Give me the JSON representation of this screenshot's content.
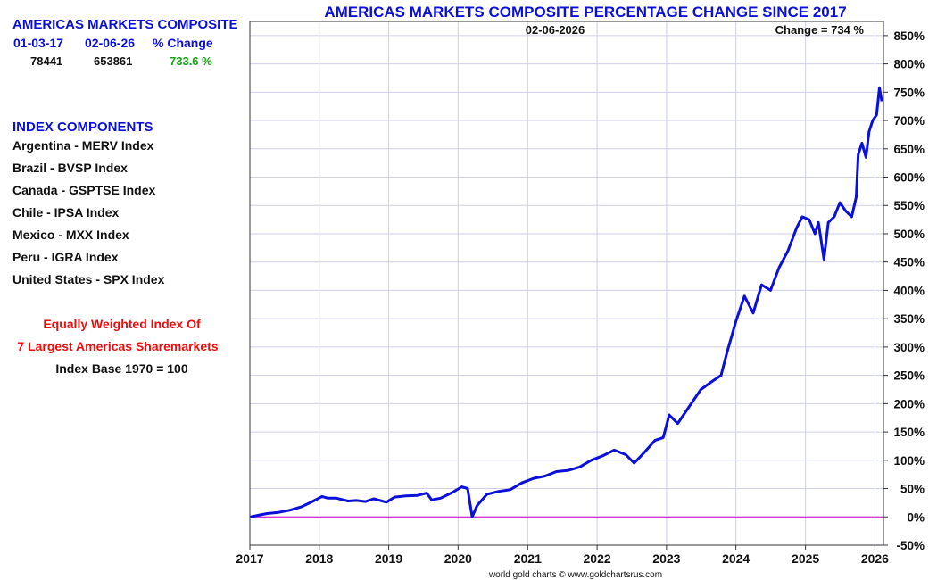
{
  "summary": {
    "title": "AMERICAS MARKETS COMPOSITE",
    "col_headers": [
      "01-03-17",
      "02-06-26",
      "% Change"
    ],
    "start_value": "78441",
    "end_value": "653861",
    "pct_change": "733.6 %"
  },
  "components": {
    "heading": "INDEX COMPONENTS",
    "items": [
      "Argentina - MERV Index",
      "Brazil - BVSP Index",
      "Canada - GSPTSE Index",
      "Chile - IPSA Index",
      "Mexico - MXX Index",
      "Peru - IGRA Index",
      "United States - SPX Index"
    ]
  },
  "notes": {
    "line1": "Equally Weighted Index Of",
    "line2": "7 Largest Americas Sharemarkets",
    "line3": "Index Base 1970 = 100"
  },
  "footer": "world gold charts © www.goldchartsrus.com",
  "colors": {
    "series": "#0b10d8",
    "zero_line": "#cc00cc",
    "grid": "#cfcfe8",
    "title": "#0b10d8"
  },
  "chart_data": {
    "type": "line",
    "title": "AMERICAS MARKETS COMPOSITE PERCENTAGE CHANGE SINCE 2017",
    "date_label": "02-06-2026",
    "change_label": "Change = 734 %",
    "ylim": [
      -50,
      875
    ],
    "y_ticks": [
      -50,
      0,
      50,
      100,
      150,
      200,
      250,
      300,
      350,
      400,
      450,
      500,
      550,
      600,
      650,
      700,
      750,
      800,
      850
    ],
    "y_tick_labels": [
      "-50%",
      "0%",
      "50%",
      "100%",
      "150%",
      "200%",
      "250%",
      "300%",
      "350%",
      "400%",
      "450%",
      "500%",
      "550%",
      "600%",
      "650%",
      "700%",
      "750%",
      "800%",
      "850%"
    ],
    "xlim": [
      "2017-01-01",
      "2026-02-15"
    ],
    "x_ticks": [
      "2017-01-01",
      "2018-01-01",
      "2019-01-01",
      "2020-01-01",
      "2021-01-01",
      "2022-01-01",
      "2023-01-01",
      "2024-01-01",
      "2025-01-01",
      "2026-01-01"
    ],
    "x_tick_labels": [
      "2017",
      "2018",
      "2019",
      "2020",
      "2021",
      "2022",
      "2023",
      "2024",
      "2025",
      "2026"
    ],
    "grid": true,
    "zero_line": true,
    "y_axis_side": "right",
    "series": [
      {
        "points": [
          [
            "2017-01-03",
            0
          ],
          [
            "2017-02-15",
            3
          ],
          [
            "2017-04-01",
            6
          ],
          [
            "2017-06-01",
            8
          ],
          [
            "2017-08-01",
            12
          ],
          [
            "2017-10-01",
            18
          ],
          [
            "2017-12-01",
            28
          ],
          [
            "2018-01-15",
            36
          ],
          [
            "2018-02-15",
            33
          ],
          [
            "2018-04-01",
            33
          ],
          [
            "2018-06-01",
            28
          ],
          [
            "2018-07-15",
            29
          ],
          [
            "2018-09-01",
            27
          ],
          [
            "2018-10-15",
            32
          ],
          [
            "2018-12-20",
            26
          ],
          [
            "2019-02-01",
            35
          ],
          [
            "2019-04-01",
            37
          ],
          [
            "2019-06-01",
            38
          ],
          [
            "2019-07-20",
            42
          ],
          [
            "2019-08-15",
            30
          ],
          [
            "2019-10-01",
            33
          ],
          [
            "2019-12-01",
            43
          ],
          [
            "2020-01-20",
            53
          ],
          [
            "2020-02-20",
            50
          ],
          [
            "2020-03-15",
            0
          ],
          [
            "2020-04-10",
            20
          ],
          [
            "2020-06-01",
            40
          ],
          [
            "2020-08-01",
            45
          ],
          [
            "2020-10-01",
            48
          ],
          [
            "2020-12-01",
            60
          ],
          [
            "2021-02-01",
            68
          ],
          [
            "2021-04-01",
            72
          ],
          [
            "2021-06-01",
            80
          ],
          [
            "2021-08-01",
            82
          ],
          [
            "2021-10-01",
            88
          ],
          [
            "2021-12-01",
            100
          ],
          [
            "2022-02-01",
            108
          ],
          [
            "2022-04-01",
            118
          ],
          [
            "2022-06-01",
            110
          ],
          [
            "2022-07-15",
            95
          ],
          [
            "2022-09-01",
            112
          ],
          [
            "2022-11-01",
            135
          ],
          [
            "2022-12-15",
            140
          ],
          [
            "2023-01-15",
            180
          ],
          [
            "2023-03-01",
            165
          ],
          [
            "2023-05-01",
            195
          ],
          [
            "2023-07-01",
            225
          ],
          [
            "2023-09-01",
            240
          ],
          [
            "2023-10-15",
            250
          ],
          [
            "2023-11-15",
            290
          ],
          [
            "2024-01-01",
            345
          ],
          [
            "2024-02-15",
            390
          ],
          [
            "2024-04-01",
            360
          ],
          [
            "2024-05-15",
            410
          ],
          [
            "2024-07-01",
            400
          ],
          [
            "2024-08-15",
            440
          ],
          [
            "2024-10-01",
            470
          ],
          [
            "2024-11-15",
            510
          ],
          [
            "2024-12-15",
            530
          ],
          [
            "2025-01-20",
            525
          ],
          [
            "2025-02-20",
            500
          ],
          [
            "2025-03-10",
            520
          ],
          [
            "2025-04-08",
            455
          ],
          [
            "2025-05-01",
            520
          ],
          [
            "2025-06-01",
            530
          ],
          [
            "2025-07-01",
            555
          ],
          [
            "2025-08-01",
            540
          ],
          [
            "2025-09-01",
            530
          ],
          [
            "2025-09-25",
            565
          ],
          [
            "2025-10-05",
            640
          ],
          [
            "2025-10-25",
            660
          ],
          [
            "2025-11-15",
            635
          ],
          [
            "2025-12-01",
            680
          ],
          [
            "2025-12-20",
            700
          ],
          [
            "2026-01-10",
            710
          ],
          [
            "2026-01-25",
            758
          ],
          [
            "2026-02-06",
            734
          ]
        ]
      }
    ]
  }
}
